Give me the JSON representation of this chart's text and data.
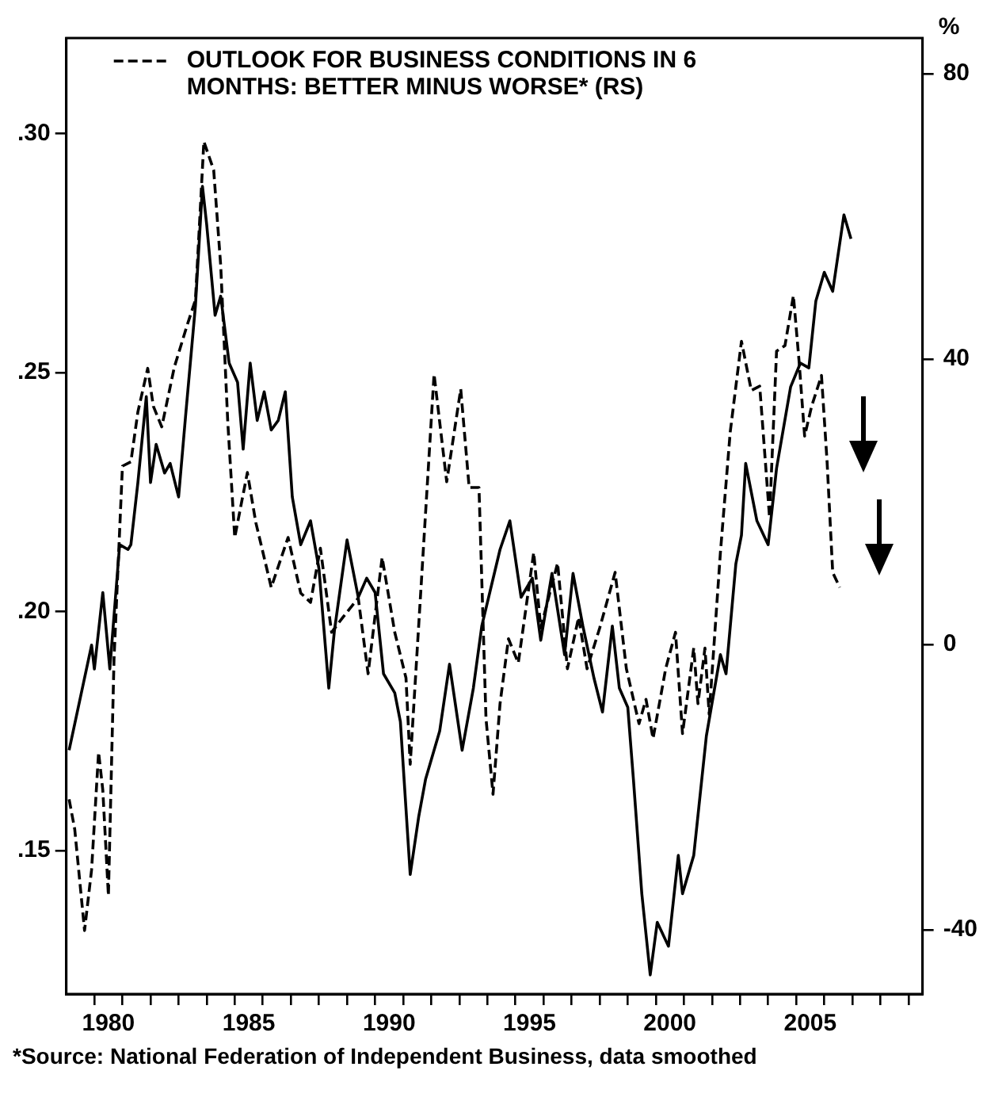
{
  "chart_data": {
    "type": "line",
    "y2label": "%",
    "annotations": [
      "*Source: National Federation of Independent Business, data smoothed"
    ],
    "legend": "top left",
    "grid": false,
    "xlim": [
      1978.5,
      2009
    ],
    "xticks": [
      {
        "value": 1979.5,
        "label": null
      },
      {
        "value": 1980,
        "label": "1980"
      },
      {
        "value": 1980.5,
        "label": null
      },
      {
        "value": 1981.5,
        "label": null
      },
      {
        "value": 1982.5,
        "label": null
      },
      {
        "value": 1983.5,
        "label": null
      },
      {
        "value": 1984.5,
        "label": null
      },
      {
        "value": 1985,
        "label": "1985"
      },
      {
        "value": 1985.5,
        "label": null
      },
      {
        "value": 1986.5,
        "label": null
      },
      {
        "value": 1987.5,
        "label": null
      },
      {
        "value": 1988.5,
        "label": null
      },
      {
        "value": 1989.5,
        "label": null
      },
      {
        "value": 1990,
        "label": "1990"
      },
      {
        "value": 1990.5,
        "label": null
      },
      {
        "value": 1991.5,
        "label": null
      },
      {
        "value": 1992.5,
        "label": null
      },
      {
        "value": 1993.5,
        "label": null
      },
      {
        "value": 1994.5,
        "label": null
      },
      {
        "value": 1995,
        "label": "1995"
      },
      {
        "value": 1995.5,
        "label": null
      },
      {
        "value": 1996.5,
        "label": null
      },
      {
        "value": 1997.5,
        "label": null
      },
      {
        "value": 1998.5,
        "label": null
      },
      {
        "value": 1999.5,
        "label": null
      },
      {
        "value": 2000,
        "label": "2000"
      },
      {
        "value": 2000.5,
        "label": null
      },
      {
        "value": 2001.5,
        "label": null
      },
      {
        "value": 2002.5,
        "label": null
      },
      {
        "value": 2003.5,
        "label": null
      },
      {
        "value": 2004.5,
        "label": null
      },
      {
        "value": 2005,
        "label": "2005"
      },
      {
        "value": 2005.5,
        "label": null
      },
      {
        "value": 2006.5,
        "label": null
      },
      {
        "value": 2007.5,
        "label": null
      },
      {
        "value": 2008.5,
        "label": null
      }
    ],
    "ylim": [
      0.12,
      0.32
    ],
    "yticks": [
      {
        "value": 0.15,
        "label": ".15"
      },
      {
        "value": 0.2,
        "label": ".20"
      },
      {
        "value": 0.25,
        "label": ".25"
      },
      {
        "value": 0.3,
        "label": ".30"
      }
    ],
    "y2lim": [
      -49,
      85
    ],
    "y2ticks": [
      -40,
      0,
      40,
      80
    ],
    "series": [
      {
        "color": "#000000",
        "line_style": "solid",
        "x": [
          1978.6,
          1979.4,
          1979.5,
          1979.8,
          1980.05,
          1980.4,
          1980.7,
          1980.8,
          1981.05,
          1981.35,
          1981.5,
          1981.7,
          1982.0,
          1982.2,
          1982.5,
          1982.75,
          1983.1,
          1983.35,
          1983.5,
          1983.8,
          1984.0,
          1984.3,
          1984.6,
          1984.8,
          1985.05,
          1985.3,
          1985.55,
          1985.8,
          1986.05,
          1986.3,
          1986.55,
          1986.85,
          1987.2,
          1987.5,
          1987.85,
          1988.05,
          1988.5,
          1988.9,
          1989.2,
          1989.5,
          1989.8,
          1990.2,
          1990.4,
          1990.75,
          1991.05,
          1991.3,
          1991.8,
          1992.15,
          1992.6,
          1993.0,
          1993.3,
          1993.95,
          1994.3,
          1994.7,
          1995.1,
          1995.4,
          1995.8,
          1996.25,
          1996.55,
          1996.9,
          1997.3,
          1997.6,
          1997.95,
          1998.2,
          1998.5,
          1998.7,
          1999.0,
          1999.3,
          1999.55,
          1999.95,
          2000.3,
          2000.45,
          2000.85,
          2001.3,
          2001.8,
          2002.0,
          2002.35,
          2002.55,
          2002.7,
          2003.1,
          2003.5,
          2003.8,
          2004.3,
          2004.65,
          2004.95,
          2005.2,
          2005.5,
          2005.8,
          2006.2,
          2006.45
        ],
        "values": [
          0.171,
          0.193,
          0.188,
          0.204,
          0.188,
          0.214,
          0.213,
          0.214,
          0.227,
          0.245,
          0.227,
          0.235,
          0.229,
          0.231,
          0.224,
          0.241,
          0.264,
          0.289,
          0.281,
          0.262,
          0.266,
          0.252,
          0.248,
          0.234,
          0.252,
          0.24,
          0.246,
          0.238,
          0.24,
          0.246,
          0.224,
          0.214,
          0.219,
          0.209,
          0.184,
          0.196,
          0.215,
          0.203,
          0.207,
          0.204,
          0.187,
          0.183,
          0.177,
          0.145,
          0.157,
          0.165,
          0.175,
          0.189,
          0.171,
          0.184,
          0.197,
          0.213,
          0.219,
          0.203,
          0.207,
          0.194,
          0.208,
          0.191,
          0.208,
          0.197,
          0.186,
          0.179,
          0.197,
          0.184,
          0.18,
          0.165,
          0.141,
          0.124,
          0.135,
          0.13,
          0.149,
          0.141,
          0.149,
          0.174,
          0.191,
          0.187,
          0.21,
          0.216,
          0.231,
          0.219,
          0.214,
          0.23,
          0.247,
          0.252,
          0.251,
          0.265,
          0.271,
          0.267,
          0.283,
          0.278
        ]
      },
      {
        "name": "OUTLOOK FOR BUSINESS CONDITIONS IN 6 MONTHS: BETTER MINUS WORSE* (RS)",
        "color": "#000000",
        "line_style": "dashed",
        "axis": "y2",
        "x": [
          1978.6,
          1978.8,
          1979.15,
          1979.4,
          1979.65,
          1979.8,
          1980.0,
          1980.2,
          1980.5,
          1980.8,
          1981.05,
          1981.4,
          1981.6,
          1981.9,
          1982.35,
          1982.8,
          1983.1,
          1983.4,
          1983.75,
          1984.0,
          1984.25,
          1984.5,
          1984.95,
          1985.25,
          1985.8,
          1986.4,
          1986.85,
          1987.2,
          1987.55,
          1987.95,
          1988.35,
          1988.9,
          1989.25,
          1989.75,
          1990.2,
          1990.6,
          1990.75,
          1991.6,
          1992.05,
          1992.55,
          1992.85,
          1993.2,
          1993.45,
          1993.7,
          1993.95,
          1994.25,
          1994.6,
          1995.15,
          1995.4,
          1996.0,
          1996.35,
          1996.75,
          1997.05,
          1997.5,
          1998.05,
          1998.45,
          1998.9,
          1999.15,
          1999.4,
          1999.85,
          2000.2,
          2000.45,
          2000.85,
          2001.0,
          2001.25,
          2001.4,
          2001.8,
          2002.15,
          2002.55,
          2002.9,
          2003.2,
          2003.55,
          2003.8,
          2004.1,
          2004.4,
          2004.6,
          2004.8,
          2005.05,
          2005.4,
          2005.6,
          2005.8,
          2006.05
        ],
        "values": [
          -21.7,
          -25.9,
          -40.1,
          -31.6,
          -15.1,
          -20.4,
          -35.2,
          -2,
          25,
          25.6,
          32.6,
          38.7,
          33.4,
          30.5,
          38.9,
          44.7,
          48.3,
          70.5,
          66.5,
          53.1,
          31.3,
          15,
          24.1,
          17.1,
          8,
          15,
          7.2,
          5.9,
          13.5,
          1.7,
          3.8,
          6.5,
          -4.1,
          12.2,
          1.7,
          -4.7,
          -16.8,
          37.9,
          22.8,
          35.8,
          22,
          22,
          -10.4,
          -21,
          -8.3,
          0.8,
          -2.6,
          12.9,
          2.3,
          11.4,
          -3.4,
          3.8,
          -3.4,
          2.3,
          10.1,
          -3.4,
          -11.1,
          -7.7,
          -13.2,
          -3.4,
          1.7,
          -12.5,
          -0.5,
          -8.3,
          -0.5,
          -9.8,
          12.9,
          29.8,
          42.5,
          35.6,
          36.2,
          17.8,
          41.1,
          41.9,
          48.9,
          39.8,
          29.2,
          33.4,
          37.7,
          25.6,
          10.1,
          8
        ]
      }
    ]
  }
}
